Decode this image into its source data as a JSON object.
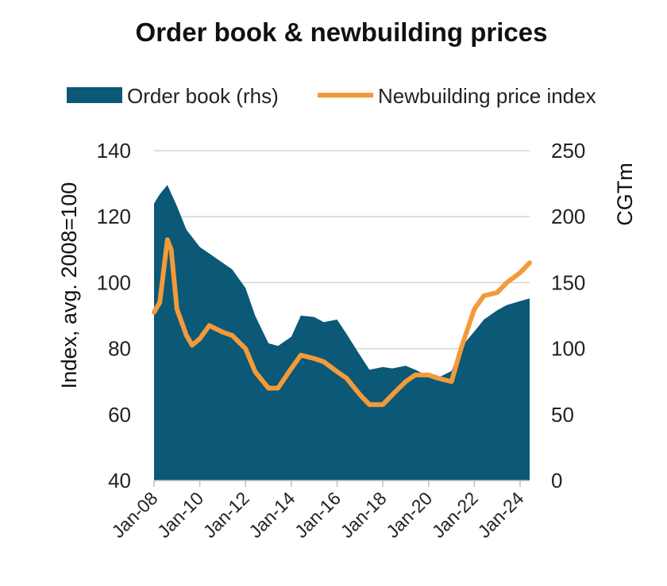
{
  "chart_data": {
    "type": "area+line",
    "title": "Order book & newbuilding prices",
    "ylabel": "Index, avg. 2008=100",
    "ylabel_right": "CGTm",
    "ylim": [
      40,
      140
    ],
    "ylim_right": [
      0,
      250
    ],
    "yticks": [
      "140",
      "120",
      "100",
      "80",
      "60",
      "40"
    ],
    "yticks_right": [
      "250",
      "200",
      "150",
      "100",
      "50",
      "0"
    ],
    "xticks": [
      "Jan-08",
      "Jan-10",
      "Jan-12",
      "Jan-14",
      "Jan-16",
      "Jan-18",
      "Jan-20",
      "Jan-22",
      "Jan-24"
    ],
    "xrange": [
      "2008-01",
      "2024-06"
    ],
    "grid": true,
    "legend_position": "top",
    "colors": {
      "area": "#0b5877",
      "line": "#f39a3a"
    },
    "series": [
      {
        "name": "Order book (rhs)",
        "axis": "right",
        "kind": "area",
        "x": [
          "2008-01",
          "2008-04",
          "2008-08",
          "2009-01",
          "2009-06",
          "2010-01",
          "2010-06",
          "2011-01",
          "2011-06",
          "2012-01",
          "2012-06",
          "2013-01",
          "2013-06",
          "2014-01",
          "2014-06",
          "2015-01",
          "2015-06",
          "2016-01",
          "2016-06",
          "2017-01",
          "2017-06",
          "2018-01",
          "2018-06",
          "2019-01",
          "2019-06",
          "2020-01",
          "2020-06",
          "2021-01",
          "2021-06",
          "2022-01",
          "2022-06",
          "2023-01",
          "2023-06",
          "2024-01",
          "2024-06"
        ],
        "values": [
          210,
          217,
          224,
          208,
          190,
          177,
          172,
          165,
          160,
          146,
          125,
          104,
          102,
          109,
          125,
          124,
          120,
          122,
          111,
          95,
          84,
          86,
          85,
          87,
          84,
          79,
          78,
          83,
          101,
          113,
          122,
          129,
          133,
          136,
          138
        ]
      },
      {
        "name": "Newbuilding price index",
        "axis": "left",
        "kind": "line",
        "x": [
          "2008-01",
          "2008-04",
          "2008-08",
          "2008-10",
          "2009-01",
          "2009-06",
          "2009-09",
          "2010-01",
          "2010-06",
          "2011-01",
          "2011-06",
          "2012-01",
          "2012-06",
          "2013-01",
          "2013-06",
          "2014-01",
          "2014-06",
          "2015-01",
          "2015-06",
          "2016-01",
          "2016-06",
          "2017-01",
          "2017-06",
          "2018-01",
          "2018-06",
          "2019-01",
          "2019-06",
          "2020-01",
          "2020-06",
          "2021-01",
          "2021-06",
          "2022-01",
          "2022-06",
          "2023-01",
          "2023-06",
          "2024-01",
          "2024-06"
        ],
        "values": [
          91,
          94,
          113,
          110,
          92,
          84,
          81,
          83,
          87,
          85,
          84,
          80,
          73,
          68,
          68,
          74,
          78,
          77,
          76,
          73,
          71,
          66,
          63,
          63,
          66,
          70,
          72,
          72,
          71,
          70,
          80,
          92,
          96,
          97,
          100,
          103,
          106
        ]
      }
    ]
  }
}
